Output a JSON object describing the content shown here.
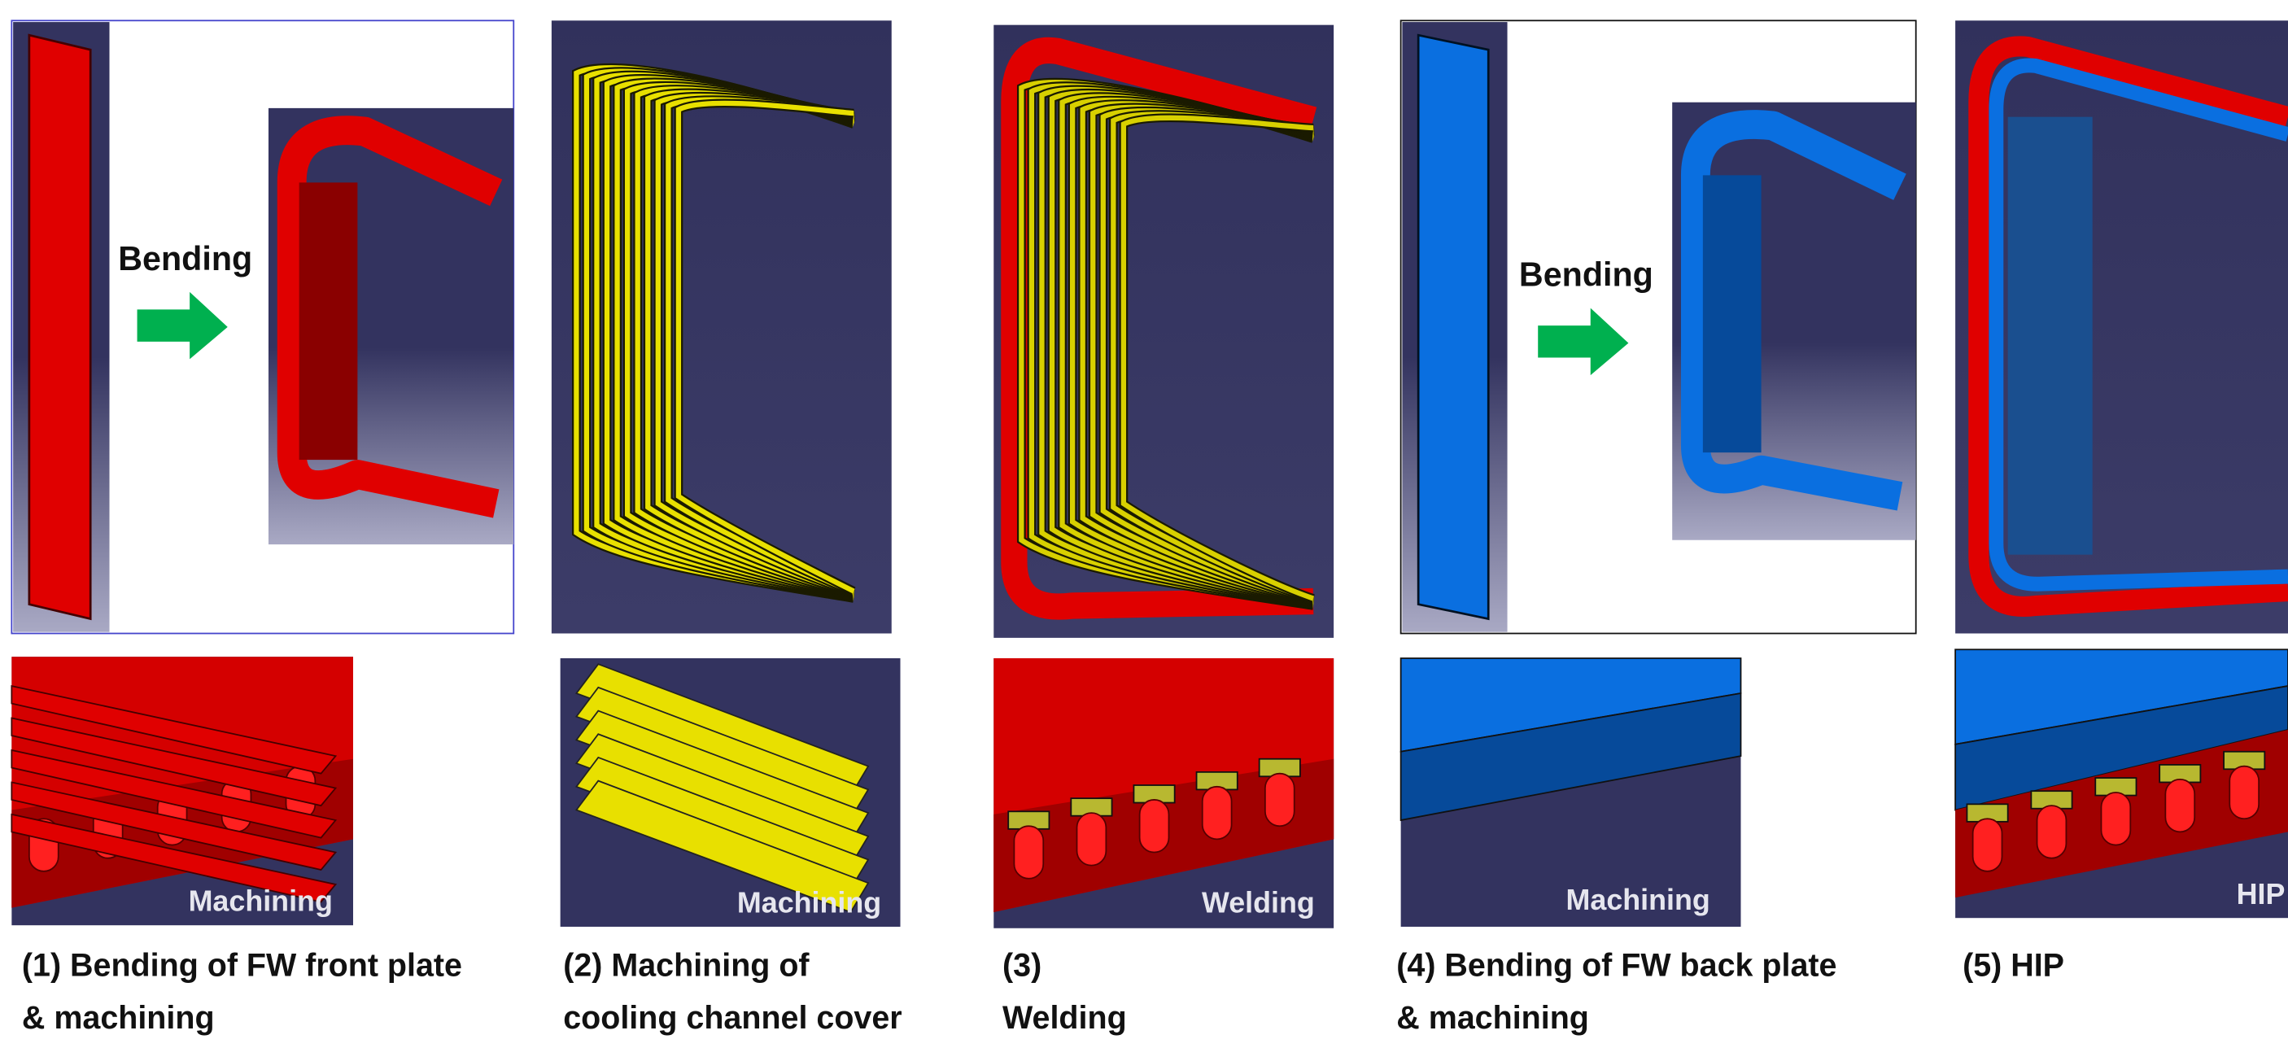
{
  "steps": [
    {
      "caption": [
        "(1) Bending of FW front plate",
        "& machining"
      ],
      "top_label": "Bending",
      "bottom_label": "Machining"
    },
    {
      "caption": [
        "(2) Machining of",
        "cooling channel cover"
      ],
      "bottom_label": "Machining"
    },
    {
      "caption": [
        "(3)",
        "Welding"
      ],
      "bottom_label": "Welding"
    },
    {
      "caption": [
        "(4) Bending of FW back plate",
        " & machining"
      ],
      "top_label": "Bending",
      "bottom_label": "Machining"
    },
    {
      "caption": [
        "(5) HIP"
      ],
      "bottom_label": "HIP"
    }
  ]
}
